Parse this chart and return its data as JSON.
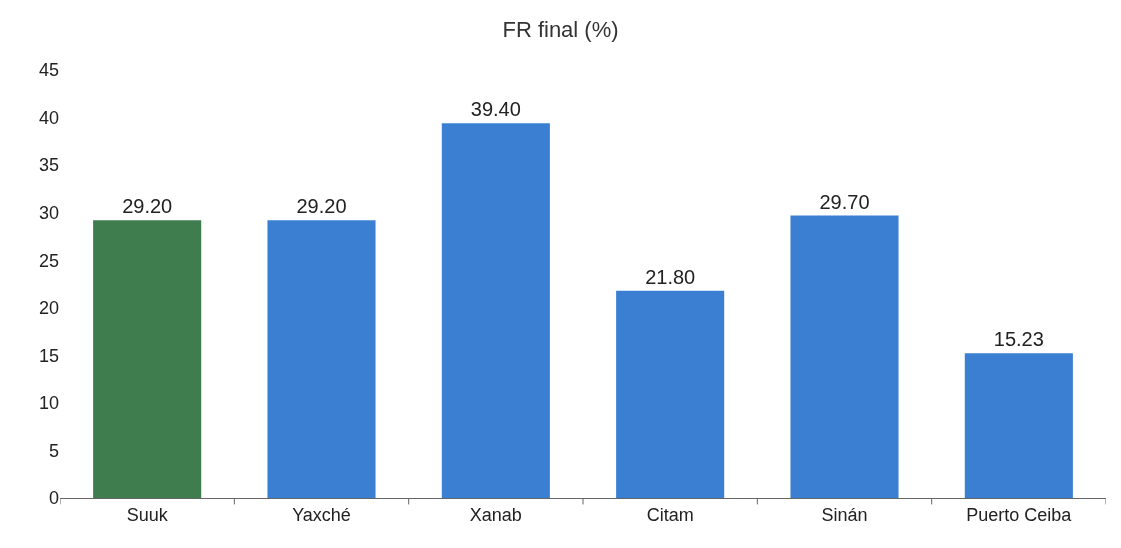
{
  "chart_data": {
    "type": "bar",
    "title": "FR final (%)",
    "categories": [
      "Suuk",
      "Yaxché",
      "Xanab",
      "Citam",
      "Sinán",
      "Puerto Ceiba"
    ],
    "values": [
      29.2,
      29.2,
      39.4,
      21.8,
      29.7,
      15.23
    ],
    "value_labels": [
      "29.20",
      "29.20",
      "39.40",
      "21.80",
      "29.70",
      "15.23"
    ],
    "colors": [
      "#3f7d4f",
      "#3b7fd3",
      "#3b7fd3",
      "#3b7fd3",
      "#3b7fd3",
      "#3b7fd3"
    ],
    "ylim": [
      0,
      45
    ],
    "yticks": [
      0,
      5,
      10,
      15,
      20,
      25,
      30,
      35,
      40,
      45
    ]
  }
}
